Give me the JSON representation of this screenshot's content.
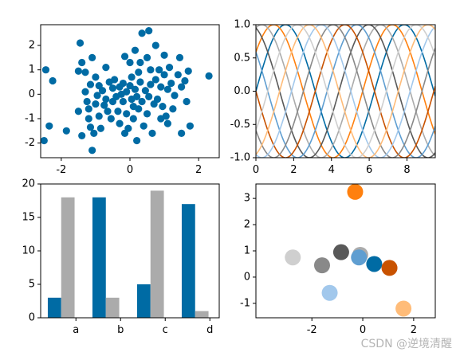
{
  "chart_data": [
    {
      "type": "scatter",
      "xlim": [
        -2.6,
        2.6
      ],
      "ylim": [
        -2.6,
        2.85
      ],
      "xticks": [
        "-2",
        "0",
        "2"
      ],
      "xtick_values": [
        -2,
        0,
        2
      ],
      "yticks": [
        "-2",
        "-1",
        "0",
        "1",
        "2"
      ],
      "ytick_values": [
        -2,
        -1,
        0,
        1,
        2
      ],
      "color": "#006ba4",
      "points": [
        [
          -2.45,
          1.0
        ],
        [
          -2.25,
          0.55
        ],
        [
          -2.5,
          -1.9
        ],
        [
          -2.35,
          -1.3
        ],
        [
          -1.85,
          -1.5
        ],
        [
          -1.5,
          -0.7
        ],
        [
          -1.5,
          0.95
        ],
        [
          -1.45,
          2.1
        ],
        [
          -1.4,
          -1.7
        ],
        [
          -1.4,
          1.3
        ],
        [
          -1.3,
          0.9
        ],
        [
          -1.3,
          0.1
        ],
        [
          -1.25,
          -0.3
        ],
        [
          -1.2,
          -0.6
        ],
        [
          -1.2,
          -1.0
        ],
        [
          -1.15,
          0.4
        ],
        [
          -1.15,
          -1.35
        ],
        [
          -1.1,
          -2.3
        ],
        [
          -1.1,
          1.5
        ],
        [
          -1.05,
          -1.6
        ],
        [
          -1.0,
          -0.4
        ],
        [
          -1.0,
          0.7
        ],
        [
          -0.95,
          -0.05
        ],
        [
          -0.9,
          -0.9
        ],
        [
          -0.9,
          0.35
        ],
        [
          -0.85,
          -1.4
        ],
        [
          -0.8,
          0.15
        ],
        [
          -0.75,
          -0.45
        ],
        [
          -0.7,
          -0.2
        ],
        [
          -0.7,
          1.1
        ],
        [
          -0.65,
          -0.7
        ],
        [
          -0.6,
          0.5
        ],
        [
          -0.55,
          -1.0
        ],
        [
          -0.5,
          -0.3
        ],
        [
          -0.5,
          0.25
        ],
        [
          -0.45,
          0.6
        ],
        [
          -0.4,
          -0.1
        ],
        [
          -0.35,
          -0.7
        ],
        [
          -0.3,
          0.3
        ],
        [
          -0.3,
          -1.2
        ],
        [
          -0.25,
          0.0
        ],
        [
          -0.2,
          -0.3
        ],
        [
          -0.2,
          0.45
        ],
        [
          -0.15,
          1.55
        ],
        [
          -0.15,
          -1.6
        ],
        [
          -0.1,
          -0.8
        ],
        [
          -0.1,
          0.1
        ],
        [
          -0.05,
          -1.4
        ],
        [
          0.0,
          1.3
        ],
        [
          0.0,
          0.35
        ],
        [
          0.05,
          -0.2
        ],
        [
          0.05,
          0.7
        ],
        [
          0.1,
          -0.5
        ],
        [
          0.1,
          -1.0
        ],
        [
          0.15,
          1.8
        ],
        [
          0.15,
          0.2
        ],
        [
          0.2,
          -0.1
        ],
        [
          0.2,
          -1.9
        ],
        [
          0.25,
          0.9
        ],
        [
          0.25,
          -0.6
        ],
        [
          0.3,
          1.3
        ],
        [
          0.3,
          0.5
        ],
        [
          0.35,
          -0.3
        ],
        [
          0.35,
          2.5
        ],
        [
          0.4,
          -1.3
        ],
        [
          0.45,
          0.15
        ],
        [
          0.5,
          1.5
        ],
        [
          0.5,
          -0.8
        ],
        [
          0.55,
          2.6
        ],
        [
          0.55,
          -0.1
        ],
        [
          0.6,
          1.0
        ],
        [
          0.6,
          0.4
        ],
        [
          0.65,
          -1.6
        ],
        [
          0.7,
          -0.4
        ],
        [
          0.75,
          2.0
        ],
        [
          0.75,
          0.6
        ],
        [
          0.8,
          -0.2
        ],
        [
          0.85,
          1.0
        ],
        [
          0.9,
          0.3
        ],
        [
          0.9,
          -1.0
        ],
        [
          0.95,
          -0.5
        ],
        [
          1.0,
          1.6
        ],
        [
          1.0,
          0.8
        ],
        [
          1.05,
          -0.9
        ],
        [
          1.1,
          0.2
        ],
        [
          1.1,
          -1.2
        ],
        [
          1.15,
          1.1
        ],
        [
          1.2,
          0.45
        ],
        [
          1.25,
          -0.6
        ],
        [
          1.3,
          -0.05
        ],
        [
          1.4,
          0.8
        ],
        [
          1.45,
          1.5
        ],
        [
          1.5,
          0.3
        ],
        [
          1.5,
          -1.6
        ],
        [
          1.6,
          0.55
        ],
        [
          1.65,
          -0.3
        ],
        [
          1.7,
          0.95
        ],
        [
          1.75,
          -1.3
        ],
        [
          2.3,
          0.75
        ]
      ]
    },
    {
      "type": "line",
      "xlim": [
        0,
        9.5
      ],
      "ylim": [
        -1,
        1
      ],
      "xticks": [
        "0",
        "2",
        "4",
        "6",
        "8"
      ],
      "xtick_values": [
        0,
        2,
        4,
        6,
        8
      ],
      "yticks": [
        "-1.0",
        "-0.5",
        "0.0",
        "0.5",
        "1.0"
      ],
      "ytick_values": [
        -1,
        -0.5,
        0,
        0.5,
        1
      ],
      "function": "sin(x + phase)",
      "phases": [
        0,
        0.628,
        1.257,
        1.885,
        2.513,
        3.142,
        3.77,
        4.398,
        5.027,
        5.655
      ],
      "colors": [
        "#006ba4",
        "#ff800e",
        "#ababab",
        "#595959",
        "#5f9ed1",
        "#c85200",
        "#898989",
        "#a2c8ec",
        "#ffbc79",
        "#cfcfcf"
      ]
    },
    {
      "type": "bar",
      "categories": [
        "a",
        "b",
        "c",
        "d"
      ],
      "ylim": [
        0,
        20
      ],
      "yticks": [
        "0",
        "5",
        "10",
        "15",
        "20"
      ],
      "ytick_values": [
        0,
        5,
        10,
        15,
        20
      ],
      "series": [
        {
          "values": [
            3,
            18,
            5,
            17
          ],
          "color": "#006ba4"
        },
        {
          "values": [
            18,
            3,
            19,
            1
          ],
          "color": "#ababab"
        }
      ]
    },
    {
      "type": "scatter",
      "xlim": [
        -4.2,
        2.85
      ],
      "ylim": [
        -1.55,
        3.55
      ],
      "xticks": [
        "-2",
        "0",
        "2"
      ],
      "xtick_values": [
        -2,
        0,
        2
      ],
      "yticks": [
        "-1",
        "0",
        "1",
        "2",
        "3"
      ],
      "ytick_values": [
        -1,
        0,
        1,
        2,
        3
      ],
      "points": [
        {
          "x": -0.3,
          "y": 3.25,
          "color": "#ff800e"
        },
        {
          "x": -2.75,
          "y": 0.75,
          "color": "#cfcfcf"
        },
        {
          "x": -1.6,
          "y": 0.45,
          "color": "#898989"
        },
        {
          "x": -0.85,
          "y": 0.95,
          "color": "#595959"
        },
        {
          "x": -0.1,
          "y": 0.85,
          "color": "#ababab"
        },
        {
          "x": -0.15,
          "y": 0.75,
          "color": "#5f9ed1"
        },
        {
          "x": 0.45,
          "y": 0.5,
          "color": "#006ba4"
        },
        {
          "x": 1.05,
          "y": 0.35,
          "color": "#c85200"
        },
        {
          "x": -1.3,
          "y": -0.6,
          "color": "#a2c8ec"
        },
        {
          "x": 1.6,
          "y": -1.2,
          "color": "#ffbc79"
        }
      ]
    }
  ],
  "watermark": "CSDN @逆境清醒"
}
